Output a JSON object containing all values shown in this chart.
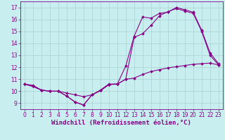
{
  "xlabel": "Windchill (Refroidissement éolien,°C)",
  "bg_color": "#c8eef0",
  "line_color": "#880088",
  "xlim": [
    -0.5,
    23.5
  ],
  "ylim": [
    8.5,
    17.5
  ],
  "xticks": [
    0,
    1,
    2,
    3,
    4,
    5,
    6,
    7,
    8,
    9,
    10,
    11,
    12,
    13,
    14,
    15,
    16,
    17,
    18,
    19,
    20,
    21,
    22,
    23
  ],
  "yticks": [
    9,
    10,
    11,
    12,
    13,
    14,
    15,
    16,
    17
  ],
  "line1_x": [
    0,
    1,
    2,
    3,
    4,
    5,
    6,
    7,
    8,
    9,
    10,
    11,
    12,
    13,
    14,
    15,
    16,
    17,
    18,
    19,
    20,
    21,
    22,
    23
  ],
  "line1_y": [
    10.6,
    10.4,
    10.1,
    10.0,
    10.0,
    9.6,
    9.1,
    8.85,
    9.7,
    10.1,
    10.6,
    10.6,
    12.1,
    14.6,
    16.2,
    16.1,
    16.5,
    16.6,
    17.0,
    16.8,
    16.6,
    15.1,
    13.2,
    12.3
  ],
  "line2_x": [
    0,
    1,
    2,
    3,
    4,
    5,
    6,
    7,
    8,
    9,
    10,
    11,
    12,
    13,
    14,
    15,
    16,
    17,
    18,
    19,
    20,
    21,
    22,
    23
  ],
  "line2_y": [
    10.6,
    10.4,
    10.1,
    10.0,
    10.0,
    9.6,
    9.1,
    8.85,
    9.7,
    10.05,
    10.55,
    10.6,
    11.0,
    14.5,
    14.8,
    15.5,
    16.3,
    16.65,
    16.9,
    16.7,
    16.5,
    15.0,
    13.0,
    12.2
  ],
  "line3_x": [
    0,
    1,
    2,
    3,
    4,
    5,
    6,
    7,
    8,
    9,
    10,
    11,
    12,
    13,
    14,
    15,
    16,
    17,
    18,
    19,
    20,
    21,
    22,
    23
  ],
  "line3_y": [
    10.6,
    10.5,
    10.1,
    10.0,
    10.0,
    9.85,
    9.7,
    9.55,
    9.7,
    10.05,
    10.55,
    10.6,
    11.0,
    11.1,
    11.4,
    11.65,
    11.8,
    11.95,
    12.05,
    12.15,
    12.25,
    12.3,
    12.35,
    12.2
  ],
  "grid_color": "#a0cccc",
  "tick_fontsize": 5.5,
  "label_fontsize": 6.5
}
